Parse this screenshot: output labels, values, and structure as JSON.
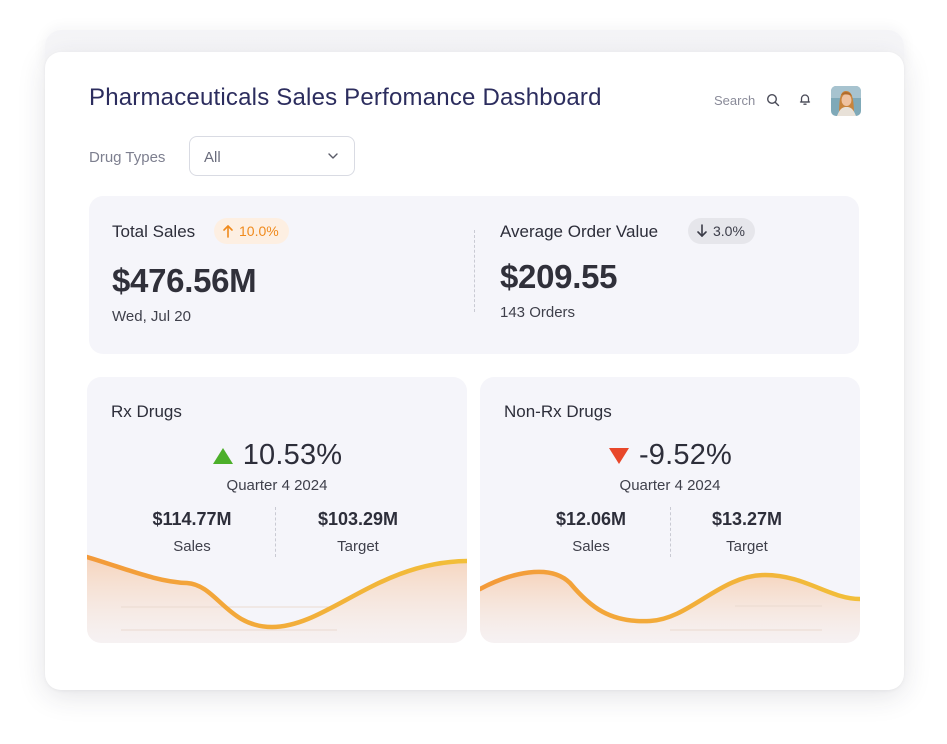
{
  "header": {
    "title": "Pharmaceuticals Sales Perfomance Dashboard",
    "search_label": "Search"
  },
  "filter": {
    "label": "Drug Types",
    "value": "All"
  },
  "summary": {
    "total_sales": {
      "label": "Total Sales",
      "change": "10.0%",
      "change_direction": "up",
      "value": "$476.56M",
      "date": "Wed, Jul 20"
    },
    "average_order": {
      "label": "Average Order Value",
      "change": "3.0%",
      "change_direction": "down",
      "value": "$209.55",
      "orders": "143 Orders"
    }
  },
  "rx": {
    "title": "Rx Drugs",
    "change": "10.53%",
    "change_direction": "up",
    "quarter": "Quarter 4 2024",
    "sales_value": "$114.77M",
    "sales_label": "Sales",
    "target_value": "$103.29M",
    "target_label": "Target"
  },
  "nonrx": {
    "title": "Non-Rx Drugs",
    "change": "-9.52%",
    "change_direction": "down",
    "quarter": "Quarter 4 2024",
    "sales_value": "$12.06M",
    "sales_label": "Sales",
    "target_value": "$13.27M",
    "target_label": "Target"
  },
  "colors": {
    "accent_up": "#f08a1c",
    "triangle_up": "#4caf2a",
    "triangle_down": "#e8472a",
    "wave_start": "#f39a3a",
    "wave_end": "#f2bf3a",
    "title": "#2c2d5e"
  }
}
